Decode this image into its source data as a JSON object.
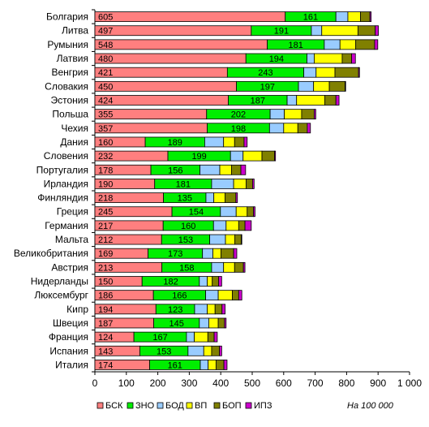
{
  "chart_data": {
    "type": "bar",
    "orientation": "horizontal",
    "stacked": true,
    "categories": [
      "Болгария",
      "Литва",
      "Румыния",
      "Латвия",
      "Венгрия",
      "Словакия",
      "Эстония",
      "Польша",
      "Чехия",
      "Дания",
      "Словения",
      "Португалия",
      "Ирландия",
      "Финляндия",
      "Греция",
      "Германия",
      "Мальта",
      "Великобритания",
      "Австрия",
      "Нидерланды",
      "Люксембург",
      "Кипр",
      "Швеция",
      "Франция",
      "Испания",
      "Италия"
    ],
    "series": [
      {
        "name": "БСК",
        "color": "#ff7f7f",
        "show_labels": true,
        "values": [
          605,
          497,
          548,
          480,
          421,
          450,
          424,
          355,
          357,
          160,
          232,
          178,
          190,
          218,
          245,
          217,
          212,
          169,
          213,
          150,
          186,
          194,
          187,
          124,
          143,
          174
        ]
      },
      {
        "name": "ЗНО",
        "color": "#00ee00",
        "show_labels": true,
        "values": [
          161,
          191,
          181,
          194,
          243,
          197,
          187,
          202,
          198,
          189,
          199,
          156,
          181,
          135,
          154,
          160,
          153,
          173,
          158,
          182,
          166,
          123,
          145,
          167,
          153,
          161
        ]
      },
      {
        "name": "БОД",
        "color": "#99ccff",
        "show_labels": false,
        "values": [
          38,
          33,
          50,
          23,
          39,
          48,
          30,
          45,
          45,
          60,
          40,
          63,
          70,
          25,
          50,
          40,
          50,
          33,
          38,
          25,
          40,
          40,
          30,
          25,
          50,
          25
        ]
      },
      {
        "name": "ВП",
        "color": "#ffff00",
        "show_labels": false,
        "values": [
          40,
          115,
          50,
          89,
          60,
          50,
          90,
          55,
          45,
          35,
          60,
          37,
          40,
          36,
          35,
          40,
          30,
          26,
          35,
          16,
          45,
          25,
          30,
          43,
          25,
          25
        ]
      },
      {
        "name": "БОП",
        "color": "#808000",
        "show_labels": false,
        "values": [
          30,
          55,
          60,
          30,
          75,
          50,
          35,
          40,
          30,
          30,
          40,
          30,
          20,
          34,
          20,
          20,
          20,
          40,
          28,
          20,
          20,
          22,
          20,
          20,
          25,
          25
        ]
      },
      {
        "name": "ИПЗ",
        "color": "#cc00cc",
        "show_labels": false,
        "values": [
          4,
          10,
          10,
          12,
          3,
          2,
          10,
          5,
          10,
          10,
          3,
          15,
          5,
          5,
          5,
          20,
          2,
          10,
          5,
          10,
          10,
          10,
          5,
          10,
          7,
          10
        ]
      }
    ],
    "xlim": [
      0,
      1000
    ],
    "xticks": [
      0,
      100,
      200,
      300,
      400,
      500,
      600,
      700,
      800,
      900,
      1000
    ],
    "xtick_labels": [
      "0",
      "100",
      "200",
      "300",
      "400",
      "500",
      "600",
      "700",
      "800",
      "900",
      "1 000"
    ],
    "grid": false,
    "legend_position": "bottom-left",
    "note": "На 100 000"
  }
}
